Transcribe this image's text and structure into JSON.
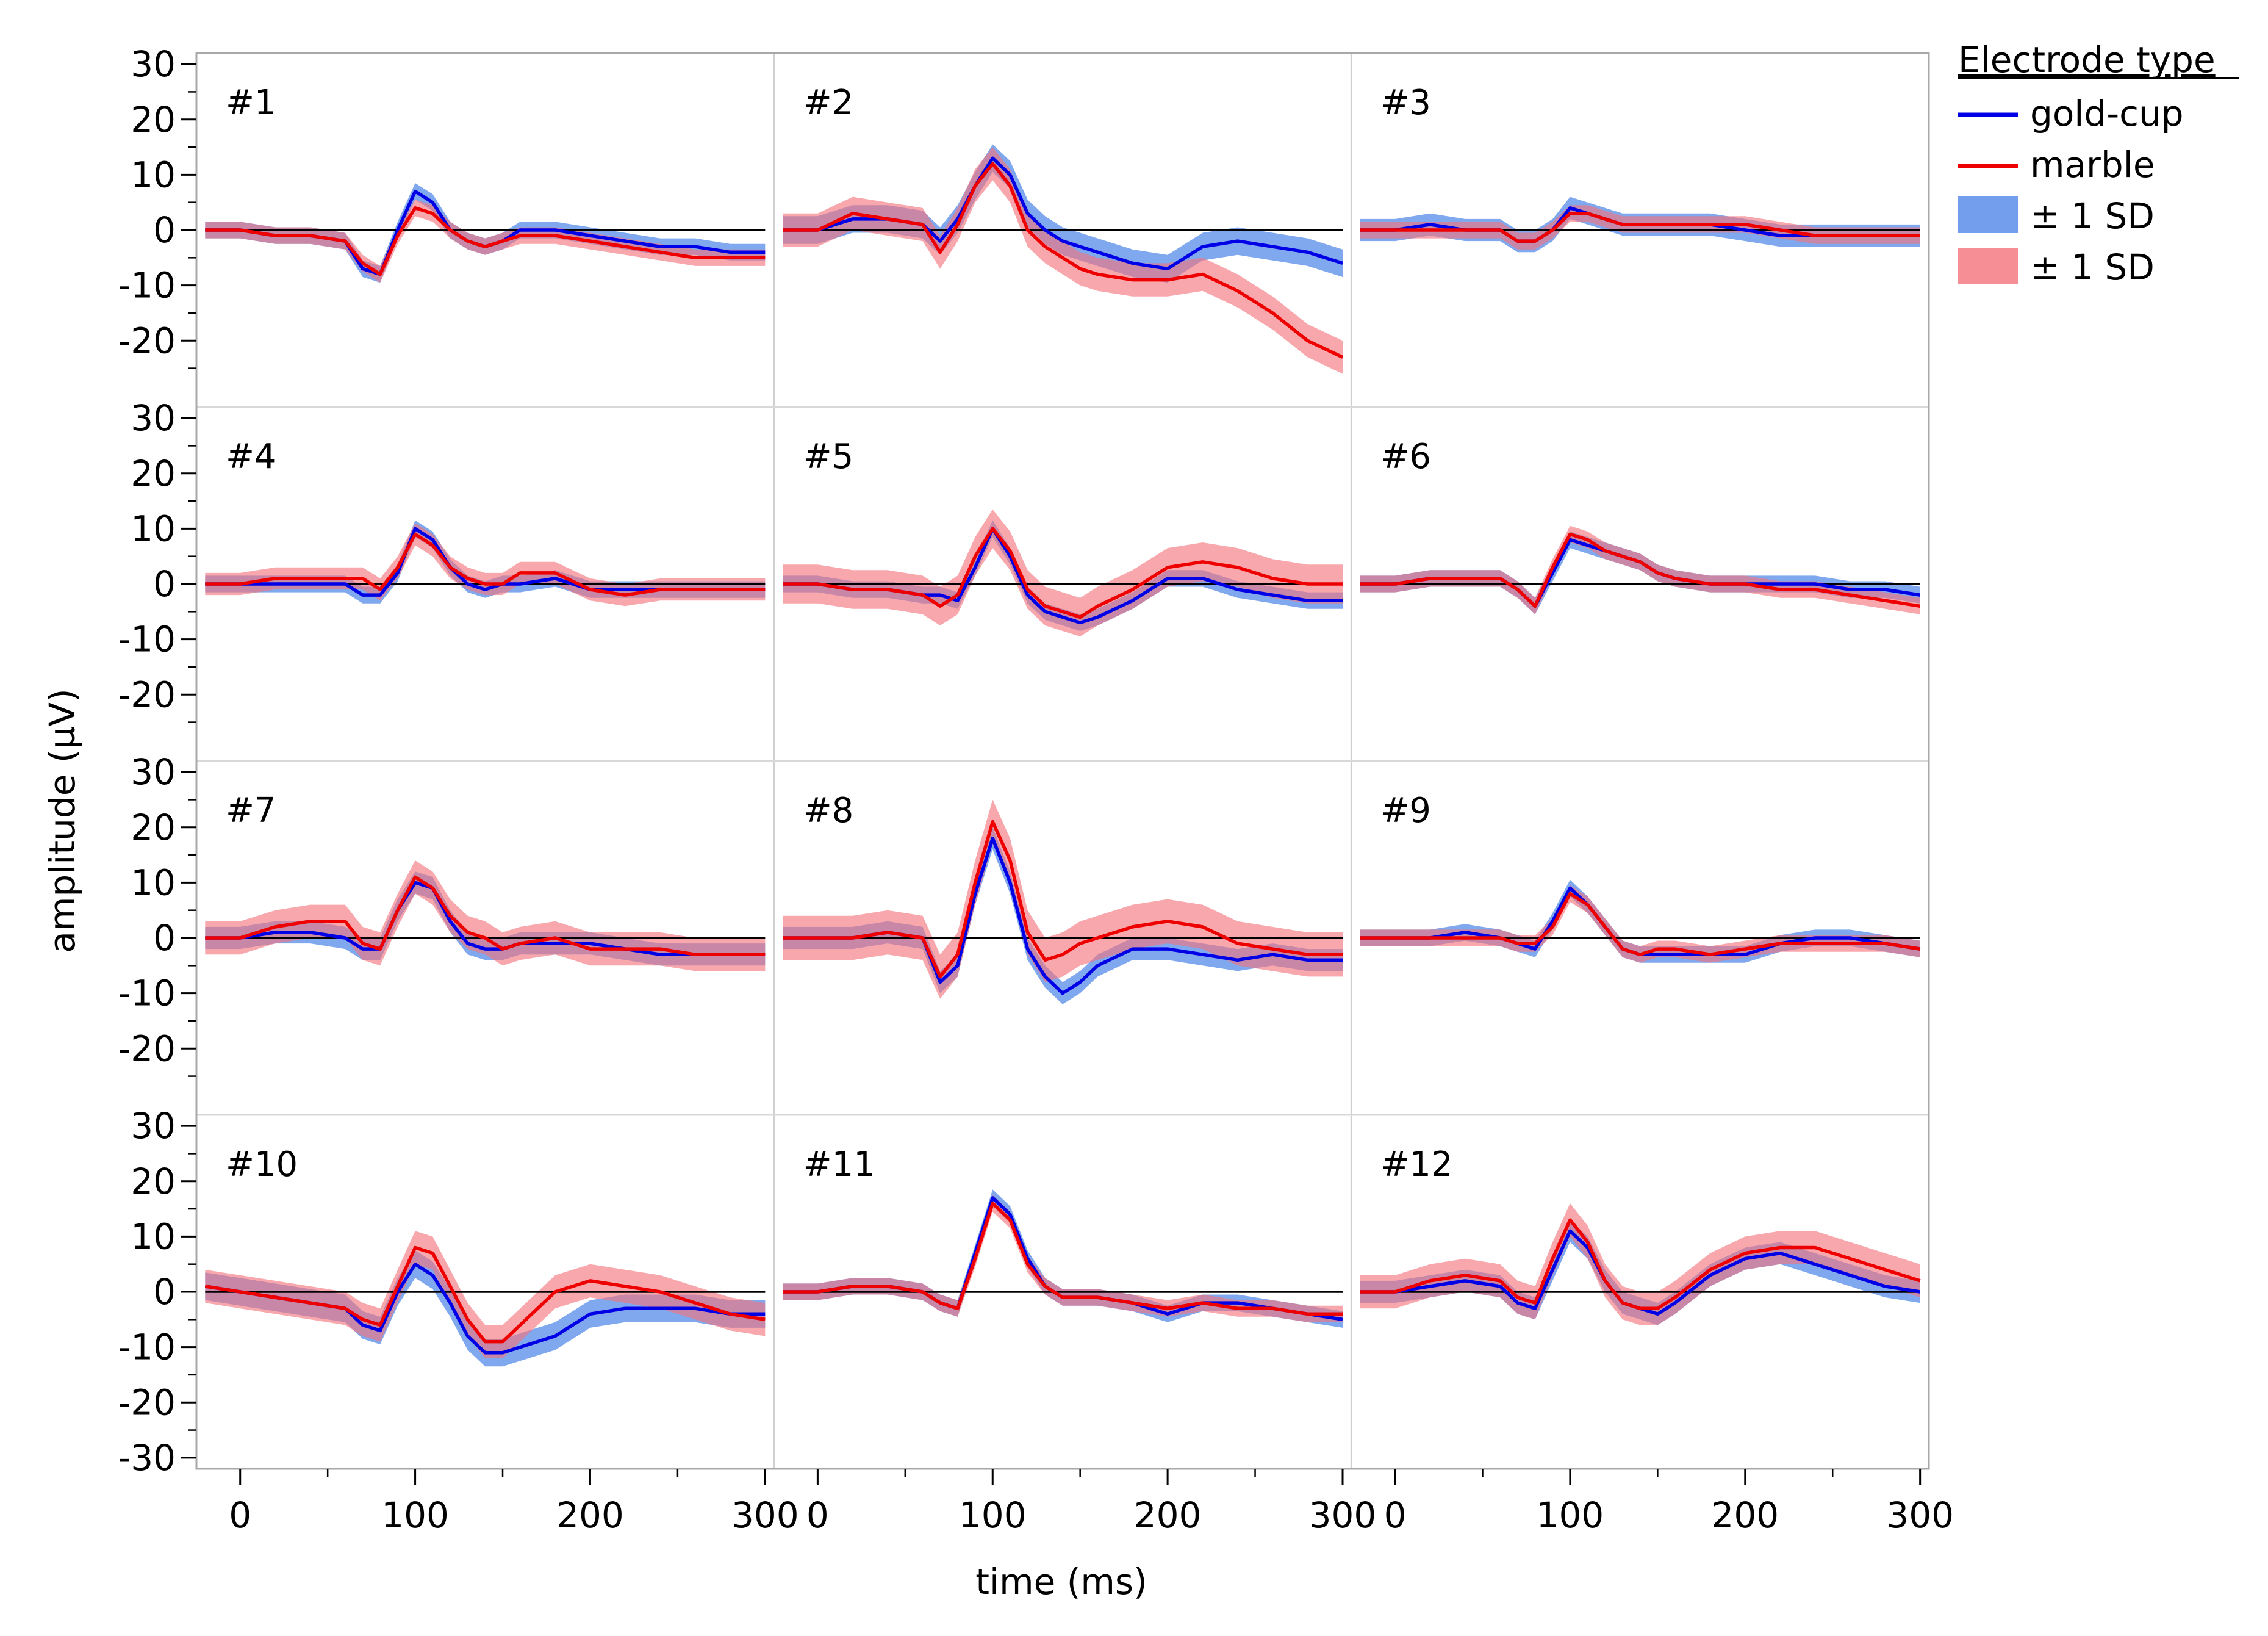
{
  "chart_data": {
    "type": "line",
    "xlabel": "time (ms)",
    "ylabel": "amplitude (µV)",
    "xlim": [
      -25,
      305
    ],
    "ylim": [
      -32,
      32
    ],
    "x_ticks": [
      "0",
      "100",
      "200",
      "300"
    ],
    "y_ticks": [
      "30",
      "20",
      "10",
      "0",
      "-10",
      "-20",
      "-30"
    ],
    "y_ticks_by_row": [
      [
        "30",
        "20",
        "10",
        "0",
        "-10",
        "-20"
      ],
      [
        "30",
        "20",
        "10",
        "0",
        "-10",
        "-20"
      ],
      [
        "30",
        "20",
        "10",
        "0",
        "-10",
        "-20"
      ],
      [
        "30",
        "20",
        "10",
        "0",
        "-10",
        "-20",
        "-30"
      ]
    ],
    "x": [
      -20,
      0,
      20,
      40,
      60,
      70,
      80,
      90,
      100,
      110,
      120,
      130,
      140,
      150,
      160,
      180,
      200,
      220,
      240,
      260,
      280,
      300
    ],
    "legend": {
      "title": "Electrode type",
      "position": "right",
      "entries": [
        {
          "label": "gold-cup",
          "kind": "line",
          "color": "#0000e6"
        },
        {
          "label": "marble",
          "kind": "line",
          "color": "#ee0000"
        },
        {
          "label": "± 1 SD",
          "kind": "band",
          "color": "#4f86e8"
        },
        {
          "label": "± 1 SD",
          "kind": "band",
          "color": "#f4727a"
        }
      ]
    },
    "panels": [
      {
        "label": "#1",
        "gold": [
          0,
          0,
          -1,
          -1,
          -2,
          -7,
          -8,
          0,
          7,
          5,
          0,
          -2,
          -3,
          -2,
          0,
          0,
          -1,
          -2,
          -3,
          -3,
          -4,
          -4
        ],
        "gold_sd": 1.5,
        "marble": [
          0,
          0,
          -1,
          -1,
          -2,
          -6,
          -8,
          -1,
          4,
          3,
          0,
          -2,
          -3,
          -2,
          -1,
          -1,
          -2,
          -3,
          -4,
          -5,
          -5,
          -5
        ],
        "marble_sd": 1.5
      },
      {
        "label": "#2",
        "gold": [
          0,
          0,
          2,
          2,
          1,
          -2,
          2,
          8,
          13,
          10,
          3,
          0,
          -2,
          -3,
          -4,
          -6,
          -7,
          -3,
          -2,
          -3,
          -4,
          -6
        ],
        "gold_sd": 2.5,
        "marble": [
          0,
          0,
          3,
          2,
          1,
          -4,
          1,
          8,
          12,
          8,
          0,
          -3,
          -5,
          -7,
          -8,
          -9,
          -9,
          -8,
          -11,
          -15,
          -20,
          -23
        ],
        "marble_sd": 3
      },
      {
        "label": "#3",
        "gold": [
          0,
          0,
          1,
          0,
          0,
          -2,
          -2,
          0,
          4,
          3,
          2,
          1,
          1,
          1,
          1,
          1,
          0,
          -1,
          -1,
          -1,
          -1,
          -1
        ],
        "gold_sd": 2,
        "marble": [
          0,
          0,
          0,
          0,
          0,
          -2,
          -2,
          0,
          3,
          3,
          2,
          1,
          1,
          1,
          1,
          1,
          1,
          0,
          -1,
          -1,
          -1,
          -1
        ],
        "marble_sd": 1.5
      },
      {
        "label": "#4",
        "gold": [
          0,
          0,
          0,
          0,
          0,
          -2,
          -2,
          2,
          10,
          8,
          3,
          0,
          -1,
          0,
          0,
          1,
          -1,
          -1,
          -1,
          -1,
          -1,
          -1
        ],
        "gold_sd": 1.5,
        "marble": [
          0,
          0,
          1,
          1,
          1,
          1,
          -1,
          3,
          9,
          7,
          3,
          1,
          0,
          0,
          2,
          2,
          -1,
          -2,
          -1,
          -1,
          -1,
          -1
        ],
        "marble_sd": 2
      },
      {
        "label": "#5",
        "gold": [
          0,
          0,
          -1,
          -1,
          -2,
          -2,
          -3,
          3,
          10,
          5,
          -2,
          -5,
          -6,
          -7,
          -6,
          -3,
          1,
          1,
          -1,
          -2,
          -3,
          -3
        ],
        "gold_sd": 1.5,
        "marble": [
          0,
          0,
          -1,
          -1,
          -2,
          -4,
          -2,
          5,
          10,
          6,
          -1,
          -4,
          -5,
          -6,
          -4,
          -1,
          3,
          4,
          3,
          1,
          0,
          0
        ],
        "marble_sd": 3.5
      },
      {
        "label": "#6",
        "gold": [
          0,
          0,
          1,
          1,
          1,
          -1,
          -4,
          2,
          8,
          7,
          6,
          5,
          4,
          2,
          1,
          0,
          0,
          0,
          0,
          -1,
          -1,
          -2
        ],
        "gold_sd": 1.5,
        "marble": [
          0,
          0,
          1,
          1,
          1,
          -1,
          -4,
          3,
          9,
          8,
          6,
          5,
          4,
          2,
          1,
          0,
          0,
          -1,
          -1,
          -2,
          -3,
          -4
        ],
        "marble_sd": 1.5
      },
      {
        "label": "#7",
        "gold": [
          0,
          0,
          1,
          1,
          0,
          -2,
          -2,
          5,
          10,
          9,
          3,
          -1,
          -2,
          -2,
          -1,
          -1,
          -1,
          -2,
          -3,
          -3,
          -3,
          -3
        ],
        "gold_sd": 2,
        "marble": [
          0,
          0,
          2,
          3,
          3,
          -1,
          -2,
          5,
          11,
          9,
          4,
          1,
          0,
          -2,
          -1,
          0,
          -2,
          -2,
          -2,
          -3,
          -3,
          -3
        ],
        "marble_sd": 3
      },
      {
        "label": "#8",
        "gold": [
          0,
          0,
          0,
          1,
          0,
          -8,
          -5,
          8,
          18,
          10,
          -2,
          -7,
          -10,
          -8,
          -5,
          -2,
          -2,
          -3,
          -4,
          -3,
          -4,
          -4
        ],
        "gold_sd": 2,
        "marble": [
          0,
          0,
          0,
          1,
          0,
          -7,
          -3,
          10,
          21,
          14,
          1,
          -4,
          -3,
          -1,
          0,
          2,
          3,
          2,
          -1,
          -2,
          -3,
          -3
        ],
        "marble_sd": 4
      },
      {
        "label": "#9",
        "gold": [
          0,
          0,
          0,
          1,
          0,
          -1,
          -2,
          3,
          9,
          6,
          2,
          -2,
          -3,
          -3,
          -3,
          -3,
          -3,
          -1,
          0,
          0,
          -1,
          -2
        ],
        "gold_sd": 1.5,
        "marble": [
          0,
          0,
          0,
          0,
          0,
          -1,
          -1,
          2,
          8,
          6,
          2,
          -2,
          -3,
          -2,
          -2,
          -3,
          -2,
          -1,
          -1,
          -1,
          -1,
          -2
        ],
        "marble_sd": 1.5
      },
      {
        "label": "#10",
        "gold": [
          1,
          0,
          -1,
          -2,
          -3,
          -6,
          -7,
          0,
          5,
          3,
          -2,
          -8,
          -11,
          -11,
          -10,
          -8,
          -4,
          -3,
          -3,
          -3,
          -4,
          -4
        ],
        "gold_sd": 2.5,
        "marble": [
          1,
          0,
          -1,
          -2,
          -3,
          -5,
          -6,
          1,
          8,
          7,
          1,
          -5,
          -9,
          -9,
          -6,
          0,
          2,
          1,
          0,
          -2,
          -4,
          -5
        ],
        "marble_sd": 3
      },
      {
        "label": "#11",
        "gold": [
          0,
          0,
          1,
          1,
          0,
          -2,
          -3,
          7,
          17,
          14,
          6,
          1,
          -1,
          -1,
          -1,
          -2,
          -4,
          -2,
          -2,
          -3,
          -4,
          -5
        ],
        "gold_sd": 1.5,
        "marble": [
          0,
          0,
          1,
          1,
          0,
          -2,
          -3,
          6,
          16,
          13,
          5,
          1,
          -1,
          -1,
          -1,
          -2,
          -3,
          -2,
          -3,
          -3,
          -4,
          -4
        ],
        "marble_sd": 1.5
      },
      {
        "label": "#12",
        "gold": [
          0,
          0,
          1,
          2,
          1,
          -2,
          -3,
          4,
          11,
          8,
          2,
          -2,
          -3,
          -4,
          -2,
          3,
          6,
          7,
          5,
          3,
          1,
          0
        ],
        "gold_sd": 2,
        "marble": [
          0,
          0,
          2,
          3,
          2,
          -1,
          -2,
          6,
          13,
          9,
          2,
          -2,
          -3,
          -3,
          -1,
          4,
          7,
          8,
          8,
          6,
          4,
          2
        ],
        "marble_sd": 3
      }
    ]
  }
}
